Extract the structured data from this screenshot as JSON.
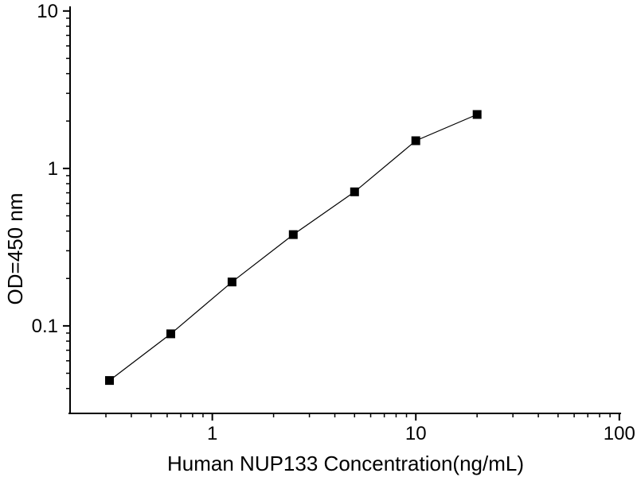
{
  "chart_data": {
    "type": "line",
    "title": "",
    "xlabel": "Human NUP133 Concentration(ng/mL)",
    "ylabel": "OD=450 nm",
    "x_scale": "log",
    "y_scale": "log",
    "xlim": [
      0.2,
      102
    ],
    "ylim": [
      0.0278,
      10.7
    ],
    "grid": false,
    "legend": false,
    "marker": "filled-square",
    "points": [
      {
        "x": 0.3125,
        "y": 0.045
      },
      {
        "x": 0.625,
        "y": 0.089
      },
      {
        "x": 1.25,
        "y": 0.19
      },
      {
        "x": 2.5,
        "y": 0.38
      },
      {
        "x": 5,
        "y": 0.71
      },
      {
        "x": 10,
        "y": 1.5
      },
      {
        "x": 20,
        "y": 2.2
      }
    ],
    "x_ticks": {
      "major": [
        {
          "value": 1,
          "label": "1"
        },
        {
          "value": 10,
          "label": "10"
        },
        {
          "value": 100,
          "label": "100"
        }
      ],
      "minor": [
        0.3,
        0.4,
        0.5,
        0.6,
        0.7,
        0.8,
        0.9,
        2,
        3,
        4,
        5,
        6,
        7,
        8,
        9,
        20,
        30,
        40,
        50,
        60,
        70,
        80,
        90
      ]
    },
    "y_ticks": {
      "major": [
        {
          "value": 0.1,
          "label": "0.1"
        },
        {
          "value": 1,
          "label": "1"
        },
        {
          "value": 10,
          "label": "10"
        }
      ],
      "minor": [
        0.04,
        0.05,
        0.06,
        0.07,
        0.08,
        0.09,
        0.2,
        0.3,
        0.4,
        0.5,
        0.6,
        0.7,
        0.8,
        0.9,
        2,
        3,
        4,
        5,
        6,
        7,
        8,
        9
      ]
    },
    "colors": {
      "line": "#000000",
      "marker": "#000000",
      "axis": "#000000",
      "text": "#000000",
      "background": "#ffffff"
    }
  }
}
